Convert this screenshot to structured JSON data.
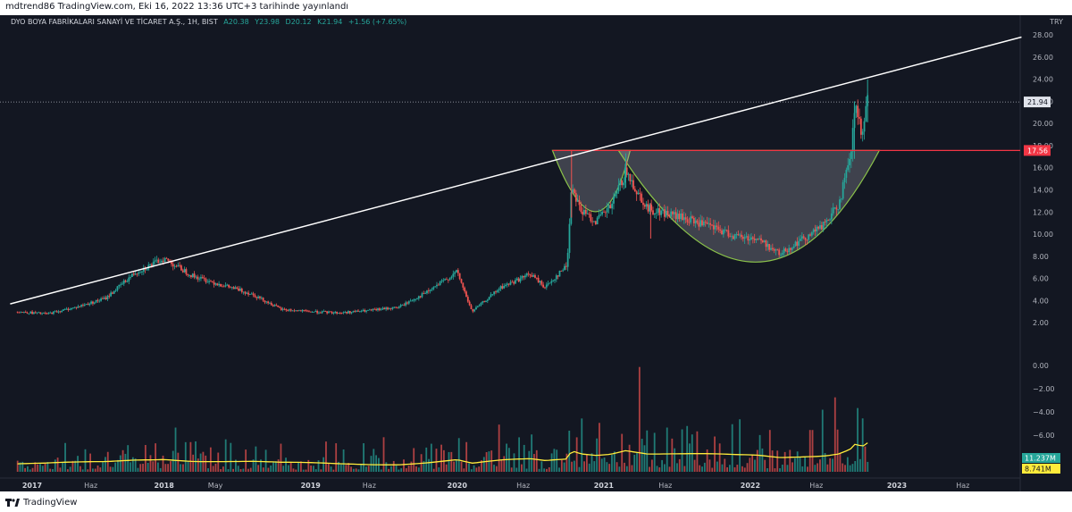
{
  "header": {
    "published_line": "mdtrend86 TradingView.com, Eki 16, 2022 13:36 UTC+3 tarihinde yayınlandı"
  },
  "legend": {
    "symbol": "DYO BOYA FABRİKALARI SANAYİ VE TİCARET A.Ş., 1H, BIST",
    "open": "A20.38",
    "high": "Y23.98",
    "low": "D20.12",
    "close": "K21.94",
    "change": "+1.56 (+7.65%)"
  },
  "currency": "TRY",
  "footer": {
    "brand": "TradingView"
  },
  "colors": {
    "background": "#131722",
    "up": "#26a69a",
    "down": "#ef5350",
    "trendline": "#ffffff",
    "resistance": "#f23645",
    "pattern_stroke": "#8bc34a",
    "volume_ma": "#ffeb3b"
  },
  "chart_data": {
    "type": "candlestick",
    "price_axis": {
      "ylim": [
        0,
        28
      ],
      "ticks": [
        "28.00",
        "26.00",
        "24.00",
        "22.00",
        "20.00",
        "18.00",
        "16.00",
        "14.00",
        "12.00",
        "10.00",
        "8.00",
        "6.00",
        "4.00",
        "2.00"
      ]
    },
    "volume_axis": {
      "ticks": [
        "0.00",
        "−2.00",
        "−4.00",
        "−6.00"
      ]
    },
    "time_axis": {
      "labels": [
        {
          "t": 0.1,
          "text": "2017"
        },
        {
          "t": 0.5,
          "text": "Haz"
        },
        {
          "t": 1.0,
          "text": "2018"
        },
        {
          "t": 1.35,
          "text": "May"
        },
        {
          "t": 2.0,
          "text": "2019"
        },
        {
          "t": 2.4,
          "text": "Haz"
        },
        {
          "t": 3.0,
          "text": "2020"
        },
        {
          "t": 3.45,
          "text": "Haz"
        },
        {
          "t": 4.0,
          "text": "2021"
        },
        {
          "t": 4.42,
          "text": "Haz"
        },
        {
          "t": 5.0,
          "text": "2022"
        },
        {
          "t": 5.45,
          "text": "Haz"
        },
        {
          "t": 6.0,
          "text": "2023"
        },
        {
          "t": 6.45,
          "text": "Haz"
        }
      ]
    },
    "price_path": [
      [
        0.0,
        3.0
      ],
      [
        0.2,
        2.8
      ],
      [
        0.4,
        3.4
      ],
      [
        0.6,
        4.2
      ],
      [
        0.8,
        6.5
      ],
      [
        1.0,
        7.8
      ],
      [
        1.2,
        6.2
      ],
      [
        1.4,
        5.4
      ],
      [
        1.6,
        4.6
      ],
      [
        1.8,
        3.2
      ],
      [
        2.0,
        3.0
      ],
      [
        2.2,
        2.9
      ],
      [
        2.4,
        3.1
      ],
      [
        2.6,
        3.4
      ],
      [
        2.8,
        4.8
      ],
      [
        3.0,
        6.6
      ],
      [
        3.1,
        3.0
      ],
      [
        3.3,
        5.2
      ],
      [
        3.5,
        6.4
      ],
      [
        3.6,
        5.2
      ],
      [
        3.75,
        7.2
      ],
      [
        3.78,
        14.5
      ],
      [
        3.85,
        12.0
      ],
      [
        3.95,
        11.2
      ],
      [
        4.05,
        12.5
      ],
      [
        4.15,
        15.6
      ],
      [
        4.3,
        12.3
      ],
      [
        4.5,
        11.6
      ],
      [
        4.7,
        10.8
      ],
      [
        4.9,
        9.8
      ],
      [
        5.05,
        9.6
      ],
      [
        5.2,
        8.2
      ],
      [
        5.35,
        9.5
      ],
      [
        5.5,
        10.8
      ],
      [
        5.6,
        12.6
      ],
      [
        5.68,
        16.6
      ],
      [
        5.72,
        21.8
      ],
      [
        5.76,
        18.5
      ],
      [
        5.8,
        21.94
      ]
    ],
    "last_price": "21.94",
    "resistance_level": "17.56",
    "trendline": [
      [
        -0.05,
        3.7
      ],
      [
        6.85,
        27.8
      ]
    ],
    "volume_readouts": [
      "11.237M",
      "8.741M"
    ]
  }
}
